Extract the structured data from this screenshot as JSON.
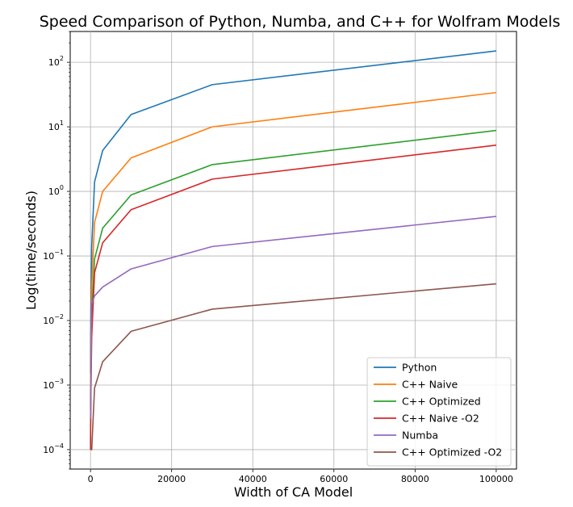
{
  "chart_data": {
    "type": "line",
    "title": "Speed Comparison of Python, Numba, and C++ for Wolfram Models",
    "xlabel": "Width of CA Model",
    "ylabel": "Log(time/seconds)",
    "yscale": "log",
    "xlim": [
      -5000,
      105000
    ],
    "ylim": [
      5e-05,
      300
    ],
    "xticks": [
      0,
      20000,
      40000,
      60000,
      80000,
      100000
    ],
    "xtick_labels": [
      "0",
      "20000",
      "40000",
      "60000",
      "80000",
      "100000"
    ],
    "yticks": [
      0.0001,
      0.001,
      0.01,
      0.1,
      1,
      10,
      100
    ],
    "ytick_labels": [
      {
        "base": "10",
        "exp": "−4"
      },
      {
        "base": "10",
        "exp": "−3"
      },
      {
        "base": "10",
        "exp": "−2"
      },
      {
        "base": "10",
        "exp": "−1"
      },
      {
        "base": "10",
        "exp": "0"
      },
      {
        "base": "10",
        "exp": "1"
      },
      {
        "base": "10",
        "exp": "2"
      }
    ],
    "grid": true,
    "legend_position": "lower-right",
    "x": [
      10,
      30,
      100,
      300,
      1000,
      3000,
      10000,
      30000,
      100000
    ],
    "series": [
      {
        "name": "Python",
        "color": "#1f77b4",
        "values": [
          0.0015,
          0.004,
          0.014,
          0.14,
          1.4,
          4.3,
          15.5,
          45,
          150
        ]
      },
      {
        "name": "C++ Naive",
        "color": "#ff7f0e",
        "values": [
          0.0004,
          0.001,
          0.004,
          0.033,
          0.33,
          1.0,
          3.3,
          10,
          34
        ]
      },
      {
        "name": "C++ Optimized",
        "color": "#2ca02c",
        "values": [
          0.00012,
          0.0003,
          0.0012,
          0.012,
          0.09,
          0.27,
          0.88,
          2.6,
          8.8
        ]
      },
      {
        "name": "C++ Naive -O2",
        "color": "#d62728",
        "values": [
          0.0001,
          0.0002,
          0.0008,
          0.0055,
          0.055,
          0.16,
          0.52,
          1.55,
          5.2
        ]
      },
      {
        "name": "Numba",
        "color": "#9467bd",
        "values": [
          0.0003,
          0.0004,
          0.0006,
          0.018,
          0.024,
          0.033,
          0.063,
          0.14,
          0.41
        ]
      },
      {
        "name": "C++ Optimized -O2",
        "color": "#8c564b",
        "values": [
          0.0001,
          0.0001,
          0.0001,
          0.0001,
          0.0009,
          0.0023,
          0.0068,
          0.015,
          0.037
        ]
      }
    ]
  }
}
